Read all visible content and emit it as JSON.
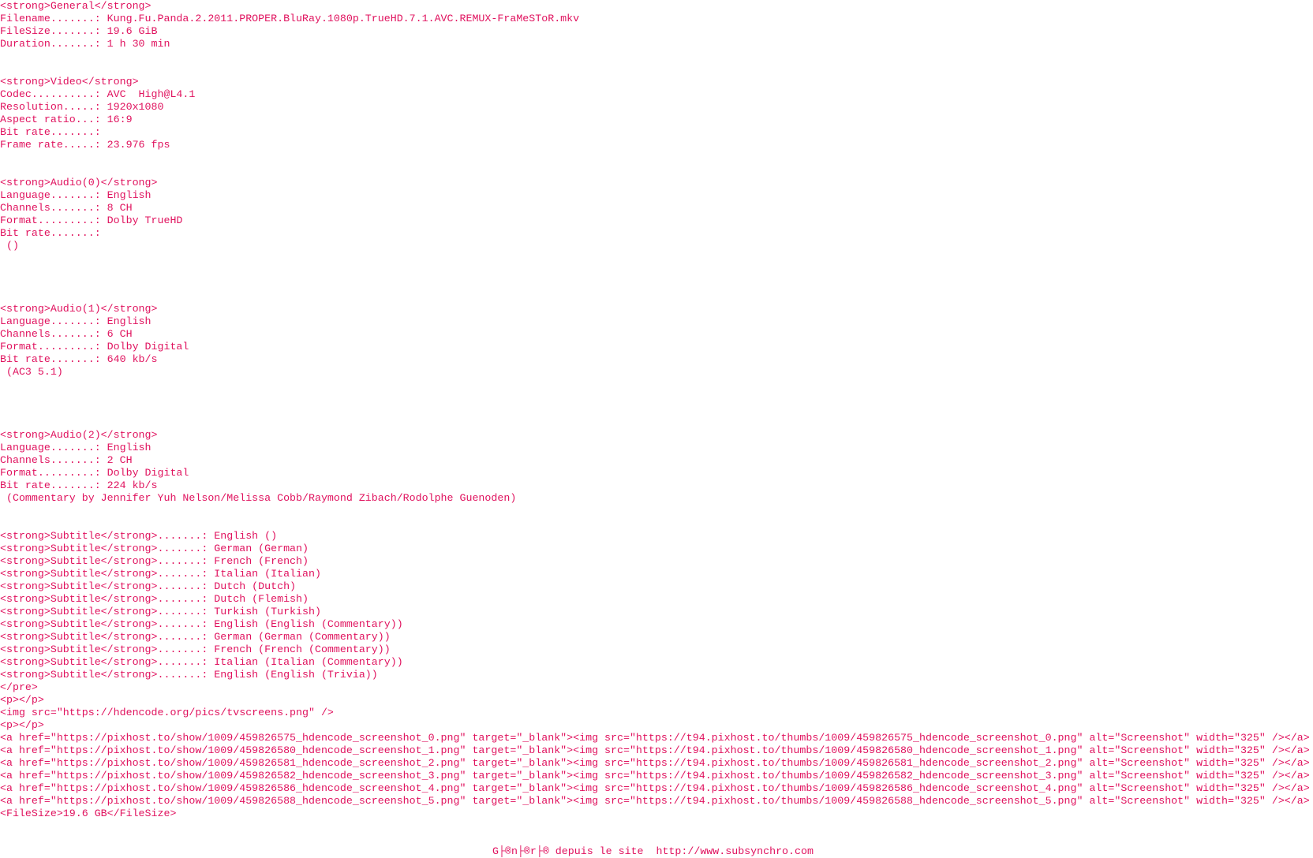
{
  "blocks": [
    {
      "lines": [
        "<strong>General</strong>",
        "Filename.......: Kung.Fu.Panda.2.2011.PROPER.BluRay.1080p.TrueHD.7.1.AVC.REMUX-FraMeSToR.mkv",
        "FileSize.......: 19.6 GiB",
        "Duration.......: 1 h 30 min"
      ]
    },
    {
      "lines": [
        "<strong>Video</strong>",
        "Codec..........: AVC  High@L4.1",
        "Resolution.....: 1920x1080",
        "Aspect ratio...: 16:9",
        "Bit rate.......:",
        "Frame rate.....: 23.976 fps"
      ]
    },
    {
      "lines": [
        "<strong>Audio(0)</strong>",
        "Language.......: English",
        "Channels.......: 8 CH",
        "Format.........: Dolby TrueHD",
        "Bit rate.......:",
        " ()"
      ]
    },
    {
      "lines": [
        "<strong>Audio(1)</strong>",
        "Language.......: English",
        "Channels.......: 6 CH",
        "Format.........: Dolby Digital",
        "Bit rate.......: 640 kb/s",
        " (AC3 5.1)"
      ]
    },
    {
      "lines": [
        "<strong>Audio(2)</strong>",
        "Language.......: English",
        "Channels.......: 2 CH",
        "Format.........: Dolby Digital",
        "Bit rate.......: 224 kb/s",
        " (Commentary by Jennifer Yuh Nelson/Melissa Cobb/Raymond Zibach/Rodolphe Guenoden)"
      ]
    },
    {
      "lines": [
        "<strong>Subtitle</strong>.......: English ()",
        "<strong>Subtitle</strong>.......: German (German)",
        "<strong>Subtitle</strong>.......: French (French)",
        "<strong>Subtitle</strong>.......: Italian (Italian)",
        "<strong>Subtitle</strong>.......: Dutch (Dutch)",
        "<strong>Subtitle</strong>.......: Dutch (Flemish)",
        "<strong>Subtitle</strong>.......: Turkish (Turkish)",
        "<strong>Subtitle</strong>.......: English (English (Commentary))",
        "<strong>Subtitle</strong>.......: German (German (Commentary))",
        "<strong>Subtitle</strong>.......: French (French (Commentary))",
        "<strong>Subtitle</strong>.......: Italian (Italian (Commentary))",
        "<strong>Subtitle</strong>.......: English (English (Trivia))",
        "</pre>",
        "<p></p>",
        "<img src=\"https://hdencode.org/pics/tvscreens.png\" />",
        "<p></p>",
        "<a href=\"https://pixhost.to/show/1009/459826575_hdencode_screenshot_0.png\" target=\"_blank\"><img src=\"https://t94.pixhost.to/thumbs/1009/459826575_hdencode_screenshot_0.png\" alt=\"Screenshot\" width=\"325\" /></a>",
        "<a href=\"https://pixhost.to/show/1009/459826580_hdencode_screenshot_1.png\" target=\"_blank\"><img src=\"https://t94.pixhost.to/thumbs/1009/459826580_hdencode_screenshot_1.png\" alt=\"Screenshot\" width=\"325\" /></a>",
        "<a href=\"https://pixhost.to/show/1009/459826581_hdencode_screenshot_2.png\" target=\"_blank\"><img src=\"https://t94.pixhost.to/thumbs/1009/459826581_hdencode_screenshot_2.png\" alt=\"Screenshot\" width=\"325\" /></a>",
        "<a href=\"https://pixhost.to/show/1009/459826582_hdencode_screenshot_3.png\" target=\"_blank\"><img src=\"https://t94.pixhost.to/thumbs/1009/459826582_hdencode_screenshot_3.png\" alt=\"Screenshot\" width=\"325\" /></a>",
        "<a href=\"https://pixhost.to/show/1009/459826586_hdencode_screenshot_4.png\" target=\"_blank\"><img src=\"https://t94.pixhost.to/thumbs/1009/459826586_hdencode_screenshot_4.png\" alt=\"Screenshot\" width=\"325\" /></a>",
        "<a href=\"https://pixhost.to/show/1009/459826588_hdencode_screenshot_5.png\" target=\"_blank\"><img src=\"https://t94.pixhost.to/thumbs/1009/459826588_hdencode_screenshot_5.png\" alt=\"Screenshot\" width=\"325\" /></a>",
        "<FileSize>19.6 GB</FileSize>"
      ]
    }
  ],
  "footer": "G├®n├®r├® depuis le site  http://www.subsynchro.com"
}
